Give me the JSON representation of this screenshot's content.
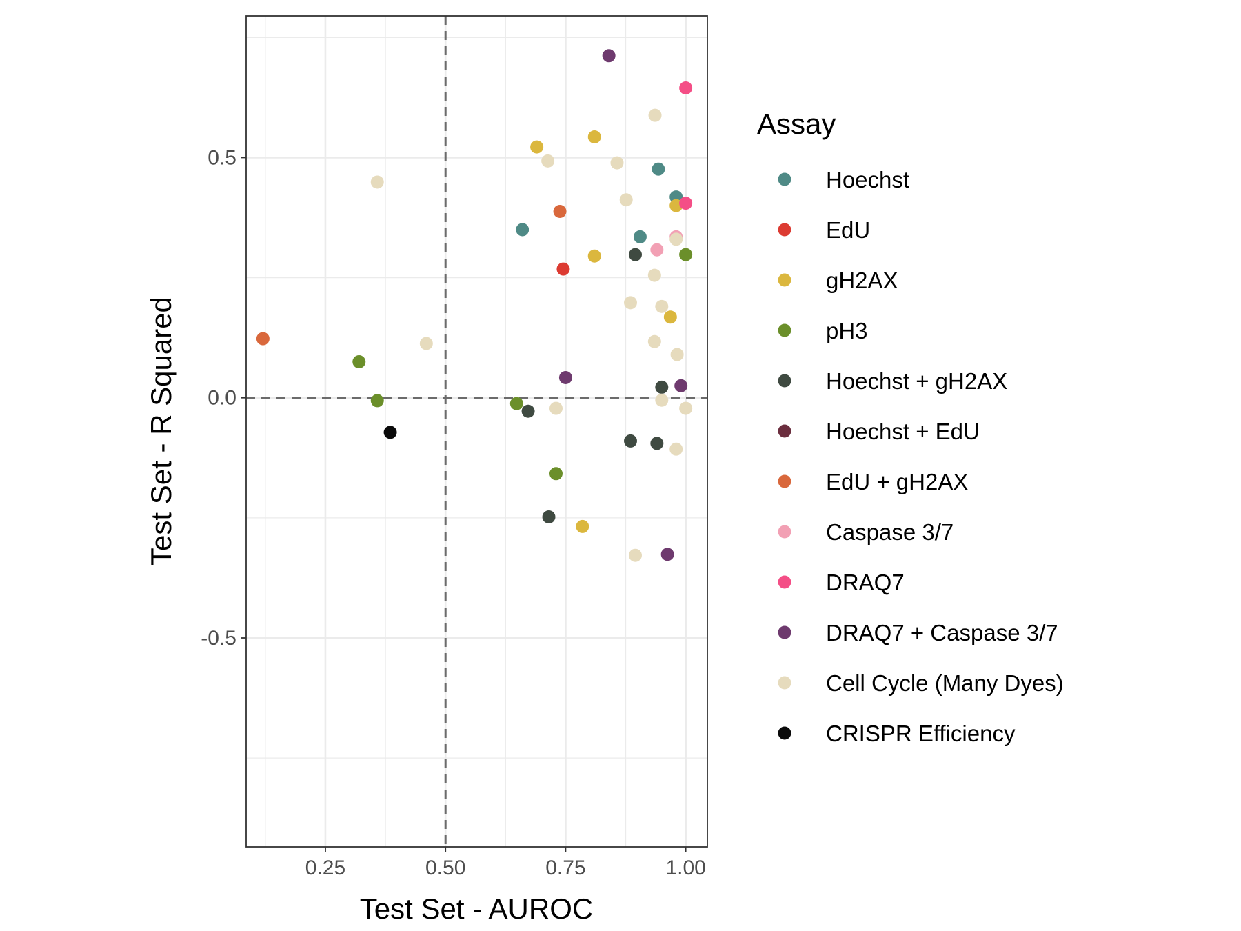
{
  "chart_data": {
    "type": "scatter",
    "xlabel": "Test Set - AUROC",
    "ylabel": "Test Set - R Squared",
    "xlim": [
      0.085,
      1.045
    ],
    "ylim": [
      -0.935,
      0.795
    ],
    "x_ticks": [
      0.25,
      0.5,
      0.75,
      1.0
    ],
    "x_tick_labels": [
      "0.25",
      "0.50",
      "0.75",
      "1.00"
    ],
    "y_ticks": [
      -0.5,
      0.0,
      0.5
    ],
    "y_tick_labels": [
      "-0.5",
      "0.0",
      "0.5"
    ],
    "x_minor_ticks": [
      0.125,
      0.375,
      0.625,
      0.875
    ],
    "y_minor_ticks": [
      -0.75,
      -0.25,
      0.25,
      0.75
    ],
    "reference_lines": {
      "x": 0.5,
      "y": 0.0,
      "style": "dashed"
    },
    "grid": true,
    "legend": {
      "title": "Assay",
      "position": "right",
      "entries": [
        {
          "name": "Hoechst",
          "color": "#4f8a86"
        },
        {
          "name": "EdU",
          "color": "#dc3b32"
        },
        {
          "name": "gH2AX",
          "color": "#dbb73e"
        },
        {
          "name": "pH3",
          "color": "#6b8f2a"
        },
        {
          "name": "Hoechst + gH2AX",
          "color": "#3f4a41"
        },
        {
          "name": "Hoechst + EdU",
          "color": "#6b2e3e"
        },
        {
          "name": "EdU + gH2AX",
          "color": "#d9683c"
        },
        {
          "name": "Caspase 3/7",
          "color": "#f2a0b4"
        },
        {
          "name": "DRAQ7",
          "color": "#f44e86"
        },
        {
          "name": "DRAQ7 + Caspase 3/7",
          "color": "#6e3a6e"
        },
        {
          "name": "Cell Cycle (Many Dyes)",
          "color": "#e6dbbd"
        },
        {
          "name": "CRISPR Efficiency",
          "color": "#0a0a0a"
        }
      ]
    },
    "series": [
      {
        "name": "Hoechst",
        "points": [
          [
            0.66,
            0.35
          ],
          [
            0.943,
            0.476
          ],
          [
            0.98,
            0.418
          ],
          [
            0.905,
            0.335
          ]
        ]
      },
      {
        "name": "EdU",
        "points": [
          [
            0.745,
            0.268
          ]
        ]
      },
      {
        "name": "gH2AX",
        "points": [
          [
            0.69,
            0.522
          ],
          [
            0.81,
            0.543
          ],
          [
            0.98,
            0.4
          ],
          [
            0.81,
            0.295
          ],
          [
            0.968,
            0.168
          ],
          [
            0.785,
            -0.268
          ]
        ]
      },
      {
        "name": "pH3",
        "points": [
          [
            0.32,
            0.075
          ],
          [
            0.358,
            -0.006
          ],
          [
            0.648,
            -0.012
          ],
          [
            1.0,
            0.298
          ],
          [
            0.73,
            -0.158
          ]
        ]
      },
      {
        "name": "Hoechst + gH2AX",
        "points": [
          [
            0.895,
            0.298
          ],
          [
            0.672,
            -0.028
          ],
          [
            0.95,
            0.022
          ],
          [
            0.885,
            -0.09
          ],
          [
            0.94,
            -0.095
          ],
          [
            0.715,
            -0.248
          ]
        ]
      },
      {
        "name": "EdU + gH2AX",
        "points": [
          [
            0.738,
            0.388
          ],
          [
            0.12,
            0.123
          ]
        ]
      },
      {
        "name": "Caspase 3/7",
        "points": [
          [
            0.94,
            0.308
          ],
          [
            0.98,
            0.335
          ]
        ]
      },
      {
        "name": "DRAQ7",
        "points": [
          [
            1.0,
            0.645
          ],
          [
            1.0,
            0.405
          ]
        ]
      },
      {
        "name": "DRAQ7 + Caspase 3/7",
        "points": [
          [
            0.84,
            0.712
          ],
          [
            0.75,
            0.042
          ],
          [
            0.99,
            0.025
          ],
          [
            0.962,
            -0.326
          ]
        ]
      },
      {
        "name": "Cell Cycle (Many Dyes)",
        "points": [
          [
            0.936,
            0.588
          ],
          [
            0.713,
            0.493
          ],
          [
            0.857,
            0.489
          ],
          [
            0.358,
            0.449
          ],
          [
            0.876,
            0.412
          ],
          [
            0.98,
            0.33
          ],
          [
            0.935,
            0.255
          ],
          [
            0.885,
            0.198
          ],
          [
            0.95,
            0.19
          ],
          [
            0.935,
            0.117
          ],
          [
            0.46,
            0.113
          ],
          [
            0.982,
            0.09
          ],
          [
            0.95,
            -0.005
          ],
          [
            0.73,
            -0.022
          ],
          [
            1.0,
            -0.022
          ],
          [
            0.98,
            -0.107
          ],
          [
            0.895,
            -0.328
          ]
        ]
      },
      {
        "name": "CRISPR Efficiency",
        "points": [
          [
            0.385,
            -0.072
          ]
        ]
      }
    ]
  }
}
